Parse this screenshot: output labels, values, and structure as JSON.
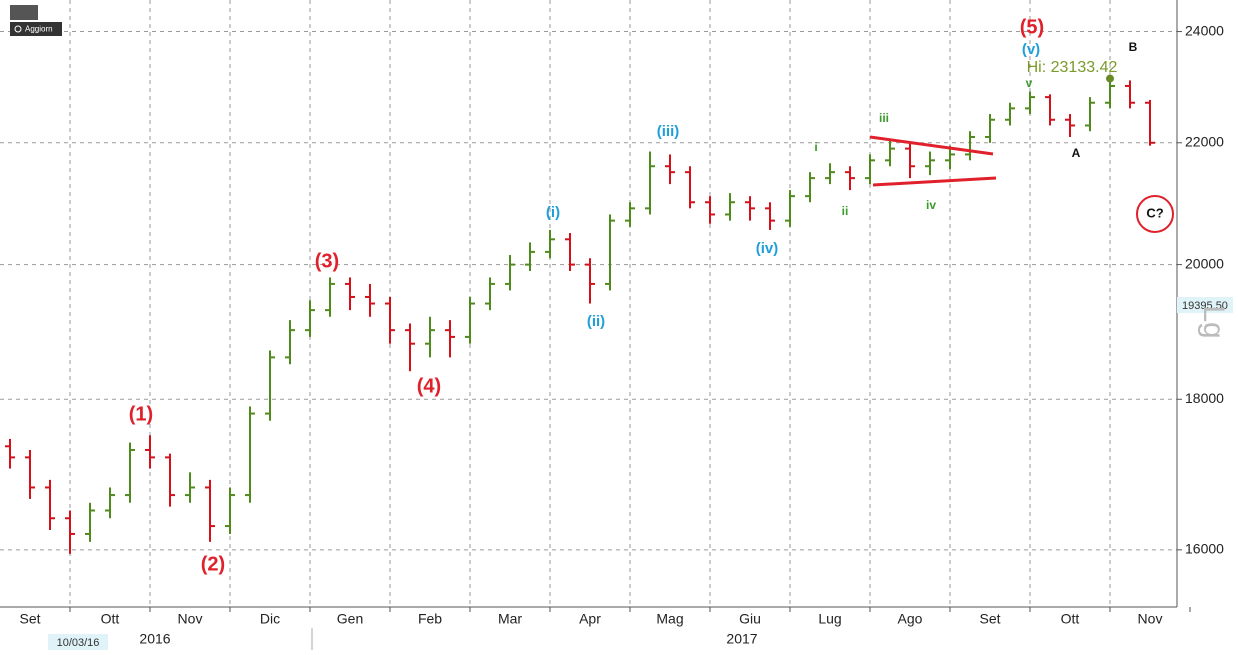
{
  "toolbar": {
    "button": "Aggiorn"
  },
  "chart_data": {
    "type": "ohlc",
    "log_scale": true,
    "grid": true,
    "categories": [
      null,
      "Set",
      null,
      null,
      null,
      "Ott",
      null,
      null,
      null,
      "Nov",
      null,
      null,
      null,
      "Dic",
      null,
      null,
      null,
      "Gen",
      null,
      null,
      null,
      "Feb",
      null,
      null,
      null,
      "Mar",
      null,
      null,
      null,
      "Apr",
      null,
      null,
      null,
      "Mag",
      null,
      null,
      null,
      "Giu",
      null,
      null,
      null,
      "Lug",
      null,
      null,
      null,
      "Ago",
      null,
      null,
      null,
      "Set",
      null,
      null,
      null,
      "Ott",
      null,
      null,
      null,
      "Nov"
    ],
    "year_labels": [
      "2016",
      "2017"
    ],
    "open": [
      17350,
      17200,
      16800,
      16400,
      16200,
      16500,
      16700,
      17300,
      17200,
      16700,
      16800,
      16300,
      16700,
      17800,
      18600,
      19000,
      19300,
      19700,
      19500,
      19400,
      19000,
      18800,
      19000,
      18900,
      19400,
      19700,
      20000,
      20200,
      20400,
      20000,
      19700,
      20700,
      20900,
      21600,
      21500,
      21000,
      20800,
      21000,
      20900,
      20700,
      21100,
      21400,
      21500,
      21400,
      21700,
      21900,
      21600,
      21700,
      21800,
      22100,
      22400,
      22600,
      22800,
      22400,
      22300,
      22700,
      23000,
      22700
    ],
    "high": [
      17450,
      17300,
      16900,
      16500,
      16600,
      16800,
      17400,
      17500,
      17250,
      17000,
      16900,
      16800,
      17900,
      18700,
      19150,
      19450,
      19800,
      19800,
      19700,
      19500,
      19100,
      19200,
      19150,
      19500,
      19800,
      20150,
      20350,
      20550,
      20500,
      20100,
      20800,
      21000,
      21850,
      21800,
      21600,
      21100,
      21150,
      21100,
      21000,
      21200,
      21500,
      21650,
      21600,
      21800,
      22050,
      22000,
      21850,
      21950,
      22200,
      22500,
      22700,
      22900,
      22850,
      22500,
      22800,
      23133.42,
      23100,
      22750
    ],
    "low": [
      17050,
      16650,
      16250,
      15950,
      16100,
      16400,
      16600,
      17050,
      16550,
      16600,
      16100,
      16200,
      16600,
      17700,
      18500,
      18900,
      19200,
      19300,
      19200,
      18800,
      18400,
      18600,
      18600,
      18800,
      19300,
      19600,
      19900,
      20100,
      19900,
      19400,
      19600,
      20600,
      20800,
      21300,
      20900,
      20650,
      20700,
      20700,
      20550,
      20600,
      21000,
      21300,
      21200,
      21300,
      21600,
      21400,
      21450,
      21550,
      21700,
      22000,
      22300,
      22500,
      22300,
      22100,
      22200,
      22600,
      22600,
      21950
    ],
    "close": [
      17200,
      16800,
      16400,
      16200,
      16500,
      16700,
      17300,
      17200,
      16700,
      16800,
      16300,
      16700,
      17800,
      18600,
      19000,
      19300,
      19700,
      19500,
      19400,
      19000,
      18800,
      19000,
      18900,
      19400,
      19700,
      20000,
      20200,
      20400,
      20000,
      19700,
      20700,
      20900,
      21600,
      21500,
      21000,
      20800,
      21000,
      20900,
      20700,
      21100,
      21400,
      21500,
      21400,
      21700,
      21900,
      21600,
      21700,
      21800,
      22100,
      22400,
      22600,
      22800,
      22400,
      22300,
      22700,
      23000,
      22700,
      22000
    ],
    "up_color": "#4f8a1c",
    "down_color": "#d4111b",
    "ylim": [
      15300,
      24600
    ],
    "yticks": [
      16000,
      18000,
      20000,
      22000,
      24000
    ],
    "last_price_label": "19395.50",
    "scale_label": "Lg",
    "date_label": "10/03/16",
    "annotations": [
      {
        "text": "(1)",
        "color": "#e0202a"
      },
      {
        "text": "(2)",
        "color": "#e0202a"
      },
      {
        "text": "(3)",
        "color": "#e0202a"
      },
      {
        "text": "(4)",
        "color": "#e0202a"
      },
      {
        "text": "(5)",
        "color": "#e0202a"
      },
      {
        "text": "(i)",
        "color": "#1e9fd8"
      },
      {
        "text": "(ii)",
        "color": "#1e9fd8"
      },
      {
        "text": "(iii)",
        "color": "#1e9fd8"
      },
      {
        "text": "(iv)",
        "color": "#1e9fd8"
      },
      {
        "text": "(v)",
        "color": "#1e9fd8"
      },
      {
        "text": "i",
        "color": "#3a9a2a"
      },
      {
        "text": "ii",
        "color": "#3a9a2a"
      },
      {
        "text": "iii",
        "color": "#3a9a2a"
      },
      {
        "text": "iv",
        "color": "#3a9a2a"
      },
      {
        "text": "v",
        "color": "#3a9a2a"
      },
      {
        "text": "A",
        "color": "#111111"
      },
      {
        "text": "B",
        "color": "#111111"
      },
      {
        "text": "C?",
        "color": "#111111"
      },
      {
        "text": "Hi: 23133.42",
        "color": "#7a9a2a"
      }
    ]
  }
}
